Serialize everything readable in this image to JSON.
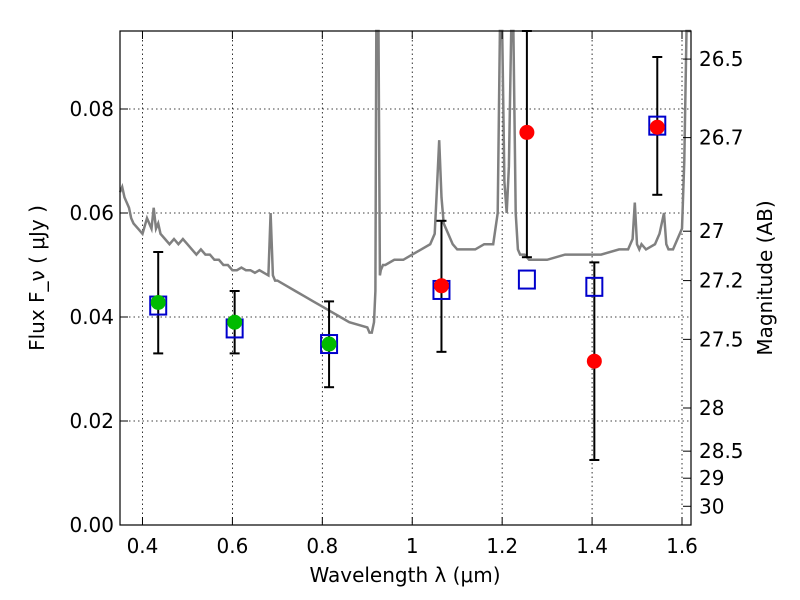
{
  "chart_data": {
    "type": "scatter",
    "xlabel": "Wavelength  λ (μm)",
    "ylabel": "Flux  F_ν  ( μJy )",
    "ylabel_right": "Magnitude (AB)",
    "xlim": [
      0.35,
      1.62
    ],
    "ylim": [
      0.0,
      0.095
    ],
    "grid": true,
    "x_ticks": [
      0.4,
      0.6,
      0.8,
      1.0,
      1.2,
      1.4,
      1.6
    ],
    "x_tick_labels": [
      "0.4",
      "0.6",
      "0.8",
      "1",
      "1.2",
      "1.4",
      "1.6"
    ],
    "y_ticks": [
      0.0,
      0.02,
      0.04,
      0.06,
      0.08
    ],
    "y_tick_labels": [
      "0.00",
      "0.02",
      "0.04",
      "0.06",
      "0.08"
    ],
    "right_ticks": [
      {
        "label": "26.5",
        "flux": 0.0896
      },
      {
        "label": "26.7",
        "flux": 0.0745
      },
      {
        "label": "27",
        "flux": 0.0565
      },
      {
        "label": "27.2",
        "flux": 0.047
      },
      {
        "label": "27.5",
        "flux": 0.0357
      },
      {
        "label": "28",
        "flux": 0.0225
      },
      {
        "label": "28.5",
        "flux": 0.0142
      },
      {
        "label": "29",
        "flux": 0.009
      },
      {
        "label": "30",
        "flux": 0.0036
      }
    ],
    "series": [
      {
        "marker": "line",
        "color": "#808080",
        "x": [
          0.35,
          0.355,
          0.36,
          0.37,
          0.375,
          0.38,
          0.39,
          0.4,
          0.41,
          0.42,
          0.425,
          0.43,
          0.435,
          0.44,
          0.45,
          0.46,
          0.47,
          0.48,
          0.49,
          0.5,
          0.51,
          0.52,
          0.53,
          0.54,
          0.55,
          0.56,
          0.57,
          0.58,
          0.59,
          0.6,
          0.61,
          0.62,
          0.63,
          0.64,
          0.65,
          0.66,
          0.67,
          0.68,
          0.685,
          0.69,
          0.695,
          0.7,
          0.72,
          0.74,
          0.76,
          0.78,
          0.8,
          0.82,
          0.84,
          0.86,
          0.88,
          0.9,
          0.905,
          0.91,
          0.915,
          0.918,
          0.92,
          0.925,
          0.928,
          0.93,
          0.935,
          0.94,
          0.96,
          0.98,
          1.0,
          1.02,
          1.04,
          1.05,
          1.055,
          1.06,
          1.065,
          1.07,
          1.08,
          1.09,
          1.1,
          1.12,
          1.14,
          1.16,
          1.18,
          1.19,
          1.195,
          1.2,
          1.205,
          1.21,
          1.215,
          1.22,
          1.225,
          1.23,
          1.235,
          1.24,
          1.25,
          1.26,
          1.3,
          1.34,
          1.38,
          1.42,
          1.46,
          1.48,
          1.49,
          1.495,
          1.5,
          1.505,
          1.51,
          1.52,
          1.54,
          1.55,
          1.56,
          1.565,
          1.57,
          1.58,
          1.6,
          1.605,
          1.61,
          1.62
        ],
        "y": [
          0.064,
          0.065,
          0.063,
          0.061,
          0.059,
          0.058,
          0.057,
          0.056,
          0.059,
          0.057,
          0.061,
          0.057,
          0.058,
          0.056,
          0.055,
          0.054,
          0.055,
          0.054,
          0.055,
          0.054,
          0.053,
          0.052,
          0.053,
          0.052,
          0.052,
          0.051,
          0.051,
          0.05,
          0.05,
          0.049,
          0.049,
          0.0495,
          0.049,
          0.049,
          0.0485,
          0.049,
          0.0485,
          0.048,
          0.06,
          0.048,
          0.047,
          0.047,
          0.046,
          0.045,
          0.044,
          0.043,
          0.042,
          0.041,
          0.04,
          0.039,
          0.0385,
          0.038,
          0.037,
          0.037,
          0.039,
          0.045,
          0.095,
          0.095,
          0.048,
          0.049,
          0.05,
          0.05,
          0.051,
          0.051,
          0.052,
          0.053,
          0.054,
          0.056,
          0.065,
          0.074,
          0.063,
          0.058,
          0.056,
          0.054,
          0.053,
          0.053,
          0.053,
          0.054,
          0.054,
          0.06,
          0.095,
          0.095,
          0.066,
          0.06,
          0.069,
          0.095,
          0.095,
          0.06,
          0.053,
          0.052,
          0.052,
          0.051,
          0.051,
          0.052,
          0.052,
          0.052,
          0.053,
          0.053,
          0.055,
          0.062,
          0.054,
          0.053,
          0.054,
          0.053,
          0.054,
          0.056,
          0.06,
          0.054,
          0.053,
          0.053,
          0.057,
          0.07,
          0.095,
          0.095
        ]
      },
      {
        "marker": "square",
        "color": "#0000cc",
        "x": [
          0.435,
          0.605,
          0.815,
          1.065,
          1.255,
          1.405,
          1.545
        ],
        "y": [
          0.0422,
          0.0378,
          0.0348,
          0.0452,
          0.0472,
          0.0458,
          0.0768
        ]
      },
      {
        "marker": "circle",
        "color": "#00bb00",
        "x": [
          0.435,
          0.605,
          0.815
        ],
        "y": [
          0.0428,
          0.039,
          0.0348
        ]
      },
      {
        "marker": "circle",
        "color": "#ff0000",
        "x": [
          1.065,
          1.255,
          1.405,
          1.545
        ],
        "y": [
          0.046,
          0.0755,
          0.0315,
          0.0765
        ]
      }
    ],
    "error_bars": [
      {
        "x": 0.435,
        "low": 0.033,
        "high": 0.0525
      },
      {
        "x": 0.605,
        "low": 0.033,
        "high": 0.045
      },
      {
        "x": 0.815,
        "low": 0.0265,
        "high": 0.043
      },
      {
        "x": 1.065,
        "low": 0.0333,
        "high": 0.0585
      },
      {
        "x": 1.255,
        "low": 0.0515,
        "high": 0.095
      },
      {
        "x": 1.405,
        "low": 0.0125,
        "high": 0.0505
      },
      {
        "x": 1.545,
        "low": 0.0635,
        "high": 0.09
      }
    ]
  }
}
